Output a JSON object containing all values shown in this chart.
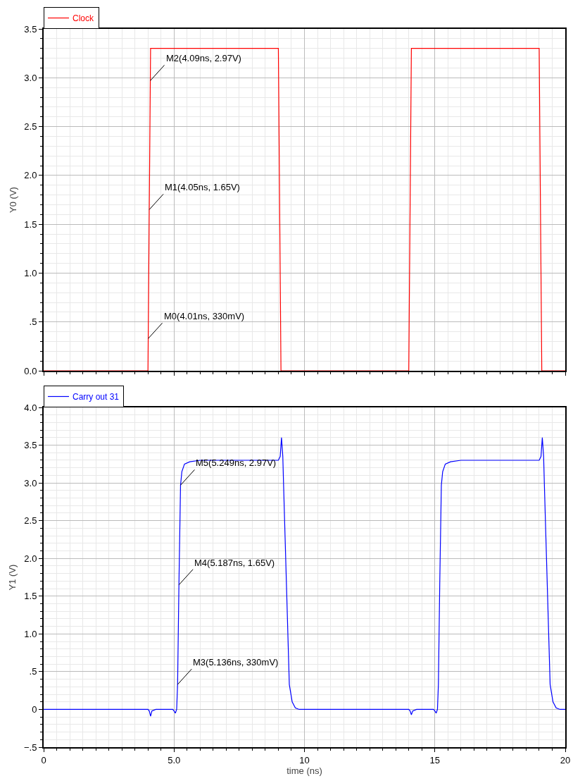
{
  "chart_data": [
    {
      "type": "line",
      "ylabel": "Y0 (V)",
      "legend": "top left",
      "grid": true,
      "tick_labels": "y",
      "xlim": [
        0,
        20
      ],
      "xticks": [
        0,
        5,
        10,
        15,
        20
      ],
      "ylim": [
        0,
        3.5
      ],
      "yticks": [
        {
          "value": 0,
          "label": "0.0"
        },
        {
          "value": 0.5,
          "label": ".5"
        },
        {
          "value": 1,
          "label": "1.0"
        },
        {
          "value": 1.5,
          "label": "1.5"
        },
        {
          "value": 2,
          "label": "2.0"
        },
        {
          "value": 2.5,
          "label": "2.5"
        },
        {
          "value": 3,
          "label": "3.0"
        },
        {
          "value": 3.5,
          "label": "3.5"
        }
      ],
      "series": [
        {
          "name": "Clock",
          "color": "#ff0000",
          "x": [
            0,
            4,
            4.1,
            9,
            9.1,
            14,
            14.1,
            19,
            19.1,
            20
          ],
          "values": [
            0,
            0,
            3.3,
            3.3,
            0,
            0,
            3.3,
            3.3,
            0,
            0
          ]
        }
      ],
      "annotations": [
        {
          "text": "M0(4.01ns, 330mV)",
          "x": 4.01,
          "y": 0.33
        },
        {
          "text": "M1(4.05ns, 1.65V)",
          "x": 4.05,
          "y": 1.65
        },
        {
          "text": "M2(4.09ns, 2.97V)",
          "x": 4.09,
          "y": 2.97
        }
      ]
    },
    {
      "type": "line",
      "xlabel": "time (ns)",
      "ylabel": "Y1 (V)",
      "legend": "top left",
      "grid": true,
      "xlim": [
        0,
        20
      ],
      "xticks": [
        0,
        {
          "value": 5,
          "label": "5.0"
        },
        10,
        15,
        20
      ],
      "ylim": [
        -0.5,
        4
      ],
      "yticks": [
        {
          "value": -0.5,
          "label": "−.5"
        },
        0,
        {
          "value": 0.5,
          "label": ".5"
        },
        {
          "value": 1,
          "label": "1.0"
        },
        {
          "value": 1.5,
          "label": "1.5"
        },
        {
          "value": 2,
          "label": "2.0"
        },
        {
          "value": 2.5,
          "label": "2.5"
        },
        {
          "value": 3,
          "label": "3.0"
        },
        {
          "value": 3.5,
          "label": "3.5"
        },
        {
          "value": 4,
          "label": "4.0"
        }
      ],
      "series": [
        {
          "name": "Carry out 31",
          "color": "#0000ff",
          "x": [
            0,
            4,
            4.05,
            4.1,
            4.15,
            4.3,
            4.95,
            5,
            5.05,
            5.1,
            5.136,
            5.187,
            5.249,
            5.3,
            5.4,
            5.6,
            6,
            9,
            9.07,
            9.12,
            9.17,
            9.2,
            9.31,
            9.42,
            9.53,
            9.65,
            9.8,
            14,
            14.05,
            14.1,
            14.15,
            14.3,
            14.95,
            15,
            15.05,
            15.1,
            15.136,
            15.187,
            15.249,
            15.3,
            15.4,
            15.6,
            16,
            19,
            19.07,
            19.12,
            19.17,
            19.2,
            19.31,
            19.42,
            19.53,
            19.65,
            19.8,
            20
          ],
          "values": [
            0,
            0,
            -0.02,
            -0.09,
            -0.02,
            0,
            0,
            -0.02,
            -0.05,
            0,
            0.33,
            1.65,
            2.97,
            3.15,
            3.25,
            3.28,
            3.3,
            3.3,
            3.35,
            3.6,
            3.35,
            2.97,
            1.65,
            0.33,
            0.1,
            0.02,
            0,
            0,
            -0.02,
            -0.07,
            -0.02,
            0,
            0,
            -0.02,
            -0.05,
            0,
            0.33,
            1.65,
            2.97,
            3.15,
            3.25,
            3.28,
            3.3,
            3.3,
            3.35,
            3.6,
            3.35,
            2.97,
            1.65,
            0.33,
            0.1,
            0.02,
            0,
            0
          ]
        }
      ],
      "annotations": [
        {
          "text": "M3(5.136ns, 330mV)",
          "x": 5.136,
          "y": 0.33
        },
        {
          "text": "M4(5.187ns, 1.65V)",
          "x": 5.187,
          "y": 1.65
        },
        {
          "text": "M5(5.249ns, 2.97V)",
          "x": 5.249,
          "y": 2.97
        }
      ]
    }
  ]
}
